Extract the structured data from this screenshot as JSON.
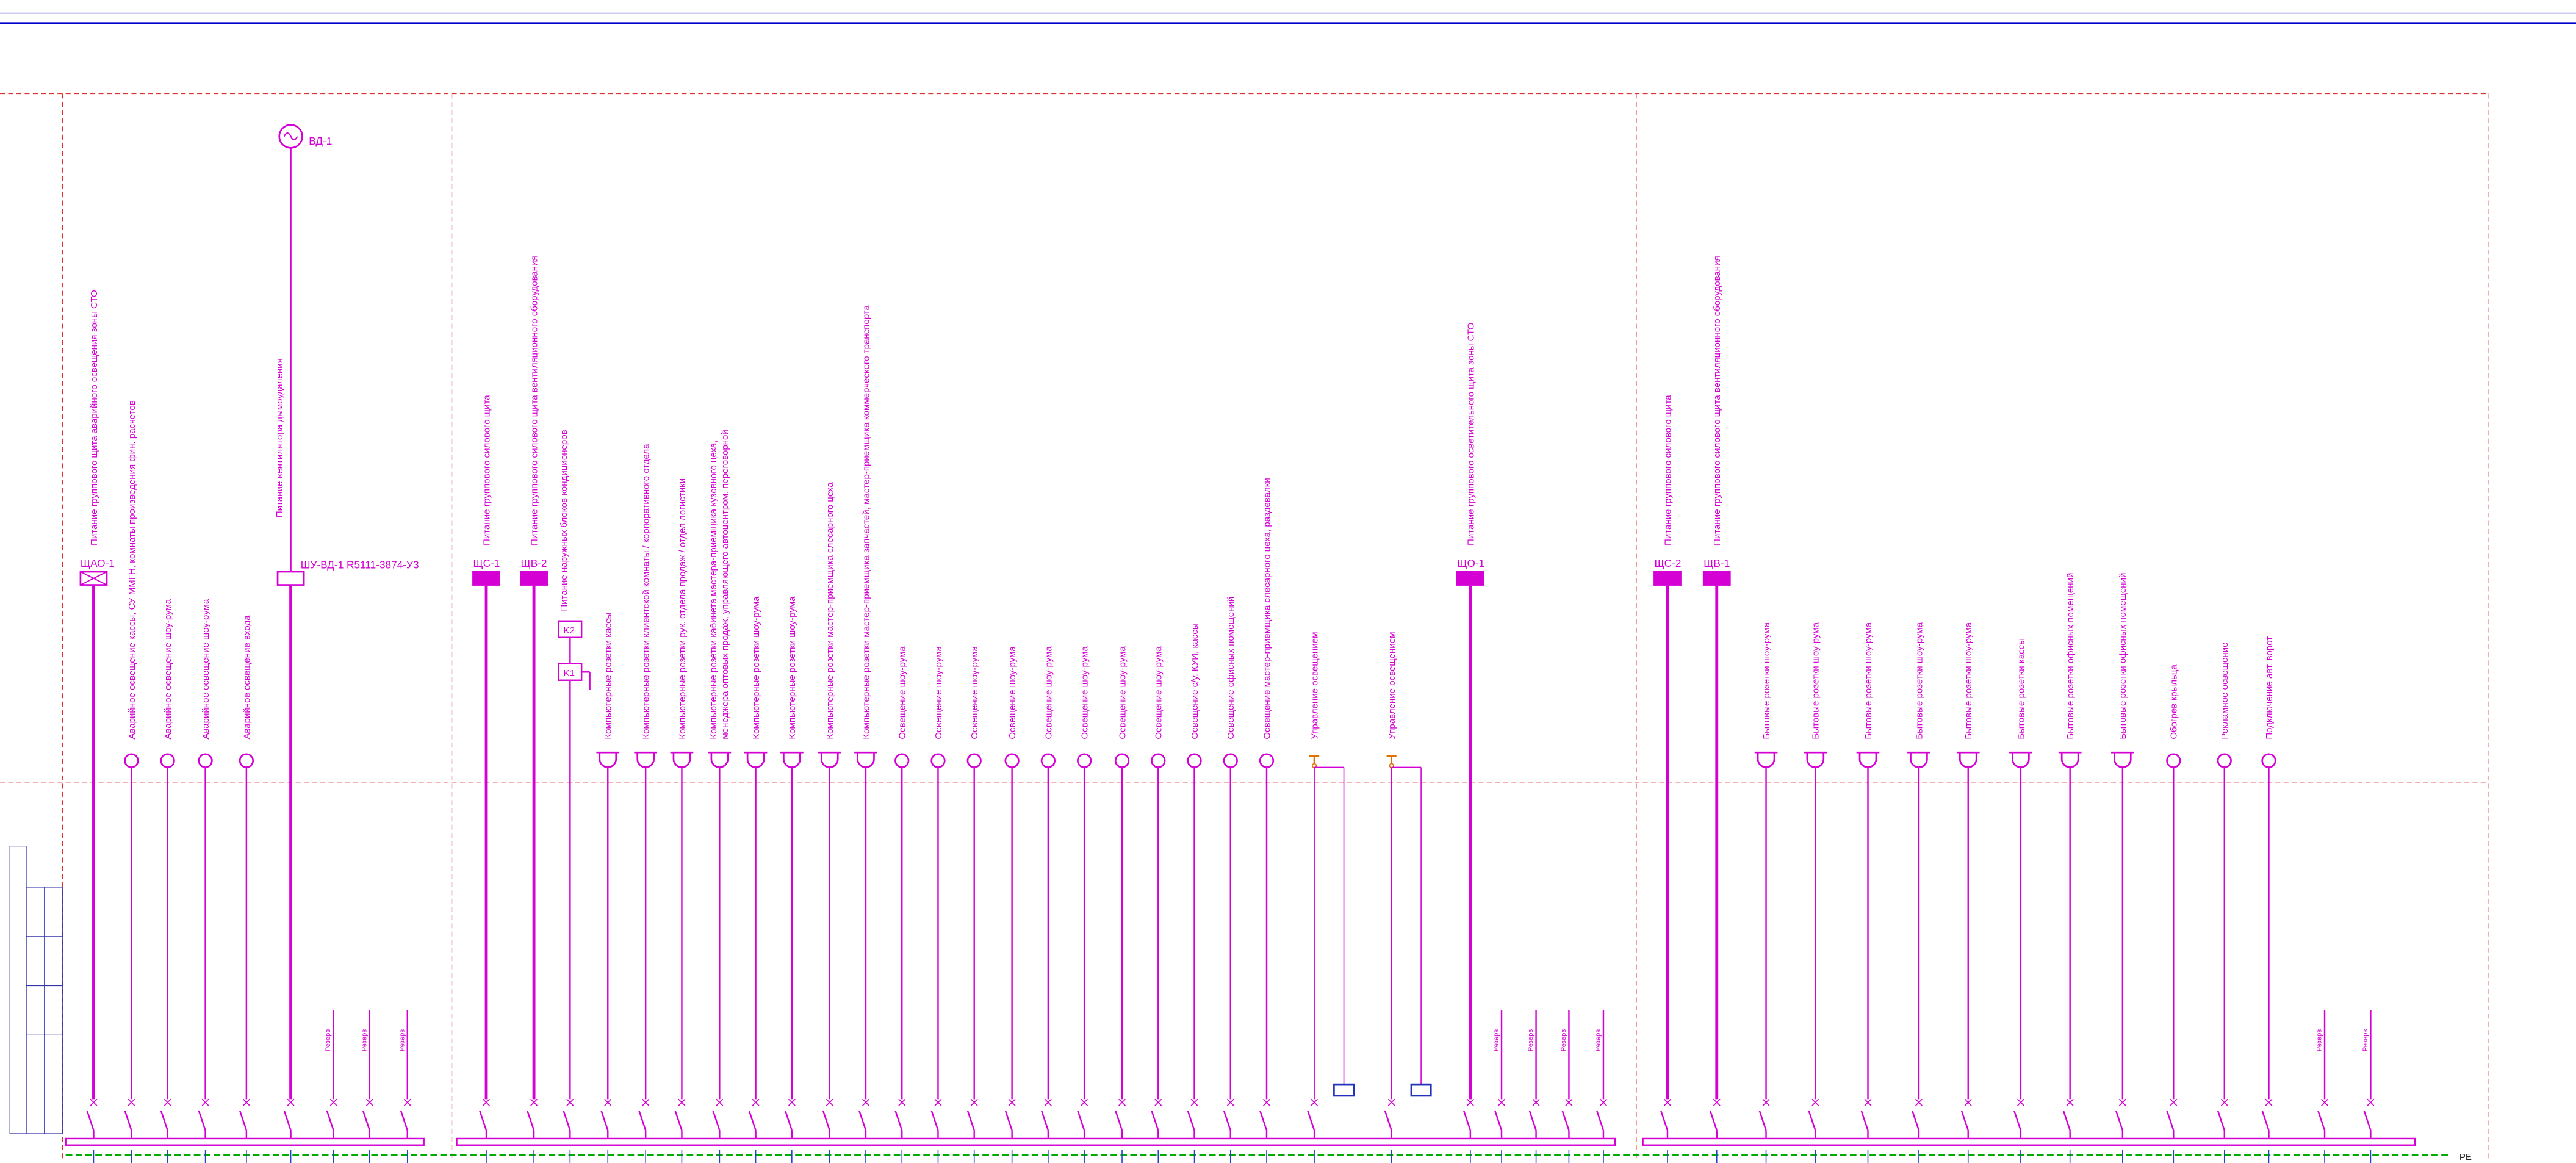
{
  "unit": "ВД-1",
  "pe_label": "PE",
  "groups": [
    {
      "feeders": [
        {
          "panel": "ЩАО-1",
          "label": "Питание группового щита аварийного освещения зоны СТО"
        },
        {
          "label": "Аварийное освещение кассы, СУ ММГН, комнаты произведения фин. расчетов"
        },
        {
          "label": "Аварийное освещение шоу-рума"
        },
        {
          "label": "Аварийное освещение шоу-рума"
        },
        {
          "label": "Аварийное освещение входа"
        },
        {
          "panel": "ШУ-ВД-1 R5111-3874-У3",
          "label": "Питание вентилятора дымоудаления"
        },
        {
          "label": "Резерв"
        },
        {
          "label": "Резерв"
        },
        {
          "label": "Резерв"
        }
      ]
    },
    {
      "feeders": [
        {
          "panel": "ЩС-1",
          "label": "Питание группового силового щита"
        },
        {
          "panel": "ЩВ-2",
          "label": "Питание группового силового щита вентиляционного оборудования"
        },
        {
          "devices": [
            "K2",
            "K1"
          ],
          "label": "Питание наружных блоков кондиционеров"
        },
        {
          "label": "Компьютерные розетки кассы"
        },
        {
          "label": "Компьютерные розетки клиентской комнаты / корпоративного отдела"
        },
        {
          "label": "Компьютерные розетки рук. отдела продаж / отдел логистики"
        },
        {
          "label": "Компьютерные розетки кабинета мастера-приемщика кузовного цеха,",
          "label2": "менеджера оптовых продаж, управляющего автоцентром, переговорной"
        },
        {
          "label": "Компьютерные розетки шоу-рума"
        },
        {
          "label": "Компьютерные розетки шоу-рума"
        },
        {
          "label": "Компьютерные розетки мастер-приемщика слесарного цеха"
        },
        {
          "label": "Компьютерные розетки мастер-приемщика запчастей, мастер-приемщика коммерческого транспорта"
        },
        {
          "label": "Освещение шоу-рума"
        },
        {
          "label": "Освещение шоу-рума"
        },
        {
          "label": "Освещение шоу-рума"
        },
        {
          "label": "Освещение шоу-рума"
        },
        {
          "label": "Освещение шоу-рума"
        },
        {
          "label": "Освещение шоу-рума"
        },
        {
          "label": "Освещение шоу-рума"
        },
        {
          "label": "Освещение шоу-рума"
        },
        {
          "label": "Освещение с/у, КУИ, кассы"
        },
        {
          "label": "Освещение офисных помещений"
        },
        {
          "label": "Освещение мастер-приемщика слесарного цеха, раздевалки"
        },
        {
          "label": "Управление освещением"
        },
        {
          "label": "Управление освещением"
        },
        {
          "panel": "ЩО-1",
          "label": "Питание группового осветительного щита зоны СТО"
        },
        {
          "label": "Резерв"
        },
        {
          "label": "Резерв"
        },
        {
          "label": "Резерв"
        },
        {
          "label": "Резерв"
        }
      ]
    },
    {
      "feeders": [
        {
          "panel": "ЩС-2",
          "label": "Питание группового силового щита"
        },
        {
          "panel": "ЩВ-1",
          "label": "Питание группового силового щита вентиляционного оборудования"
        },
        {
          "label": "Бытовые розетки шоу-рума"
        },
        {
          "label": "Бытовые розетки шоу-рума"
        },
        {
          "label": "Бытовые розетки шоу-рума"
        },
        {
          "label": "Бытовые розетки шоу-рума"
        },
        {
          "label": "Бытовые розетки шоу-рума"
        },
        {
          "label": "Бытовые розетки кассы"
        },
        {
          "label": "Бытовые розетки офисных помещений"
        },
        {
          "label": "Бытовые розетки офисных помещений"
        },
        {
          "label": "Обогрев крыльца"
        },
        {
          "label": "Рекламное освещение"
        },
        {
          "label": "Подключение авт. ворот"
        },
        {
          "label": "Резерв"
        },
        {
          "label": "Резерв"
        }
      ]
    }
  ]
}
